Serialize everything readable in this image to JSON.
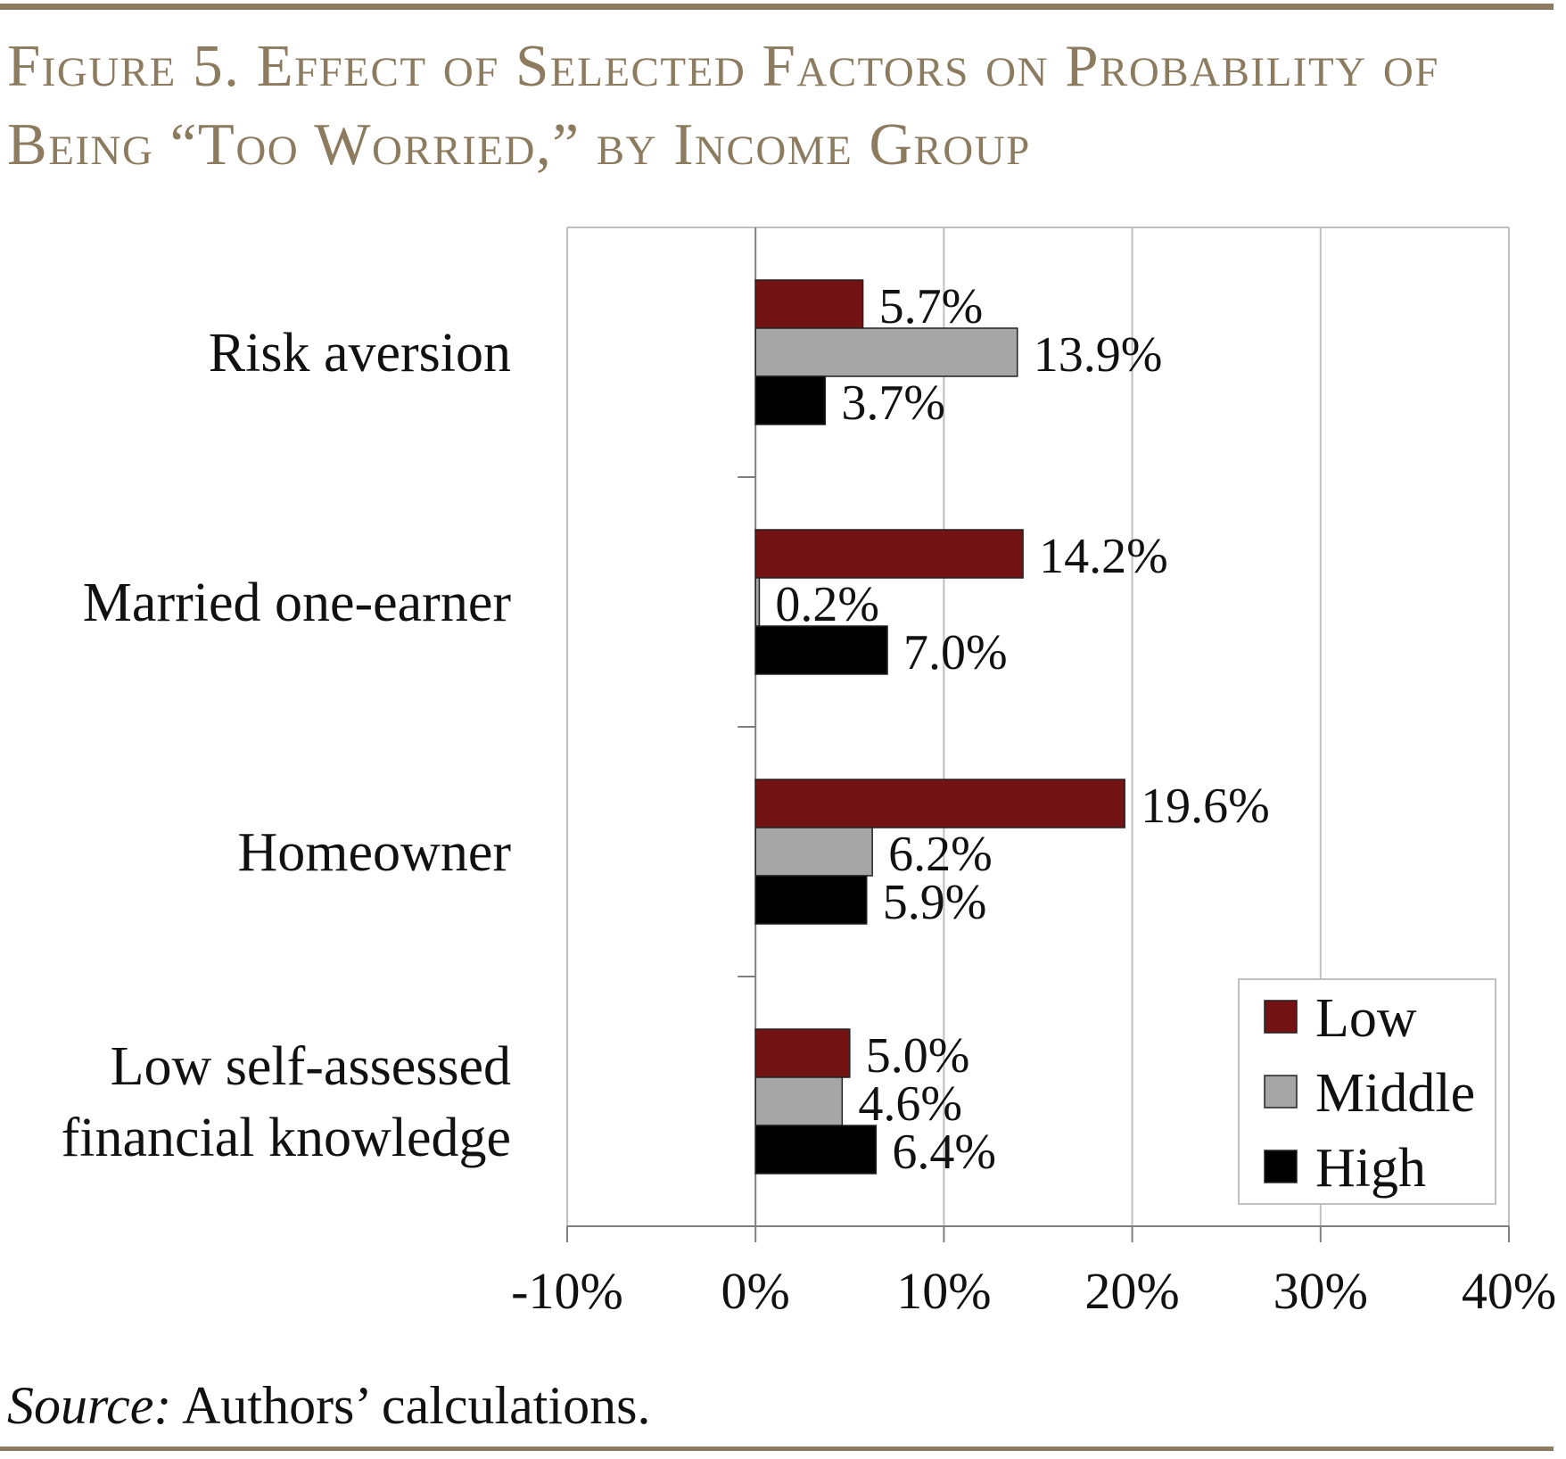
{
  "figure": {
    "title": "Figure 5. Effect of Selected Factors on Probability of Being “Too Worried,” by Income Group",
    "source_label": "Source:",
    "source_text": "Authors’ calculations."
  },
  "colors": {
    "low": "#741313",
    "middle": "#a6a6a6",
    "high": "#000000",
    "gridline": "#bfbfbf",
    "title_accent": "#8c7b5f"
  },
  "chart_data": {
    "type": "bar",
    "orientation": "horizontal",
    "title": "",
    "xlabel": "",
    "ylabel": "",
    "categories": [
      [
        "Risk aversion"
      ],
      [
        "Married one-earner"
      ],
      [
        "Homeowner"
      ],
      [
        "Low self-assessed",
        "financial knowledge"
      ]
    ],
    "series": [
      {
        "name": "Low",
        "color": "#741313",
        "values": [
          5.7,
          14.2,
          19.6,
          5.0
        ],
        "labels": [
          "5.7%",
          "14.2%",
          "19.6%",
          "5.0%"
        ]
      },
      {
        "name": "Middle",
        "color": "#a6a6a6",
        "values": [
          13.9,
          0.2,
          6.2,
          4.6
        ],
        "labels": [
          "13.9%",
          "0.2%",
          "6.2%",
          "4.6%"
        ]
      },
      {
        "name": "High",
        "color": "#000000",
        "values": [
          3.7,
          7.0,
          5.9,
          6.4
        ],
        "labels": [
          "3.7%",
          "7.0%",
          "5.9%",
          "6.4%"
        ]
      }
    ],
    "xlim": [
      -10,
      40
    ],
    "xticks": [
      -10,
      0,
      10,
      20,
      30,
      40
    ],
    "xtick_labels": [
      "-10%",
      "0%",
      "10%",
      "20%",
      "30%",
      "40%"
    ],
    "grid": true,
    "legend_position": "bottom-right"
  }
}
